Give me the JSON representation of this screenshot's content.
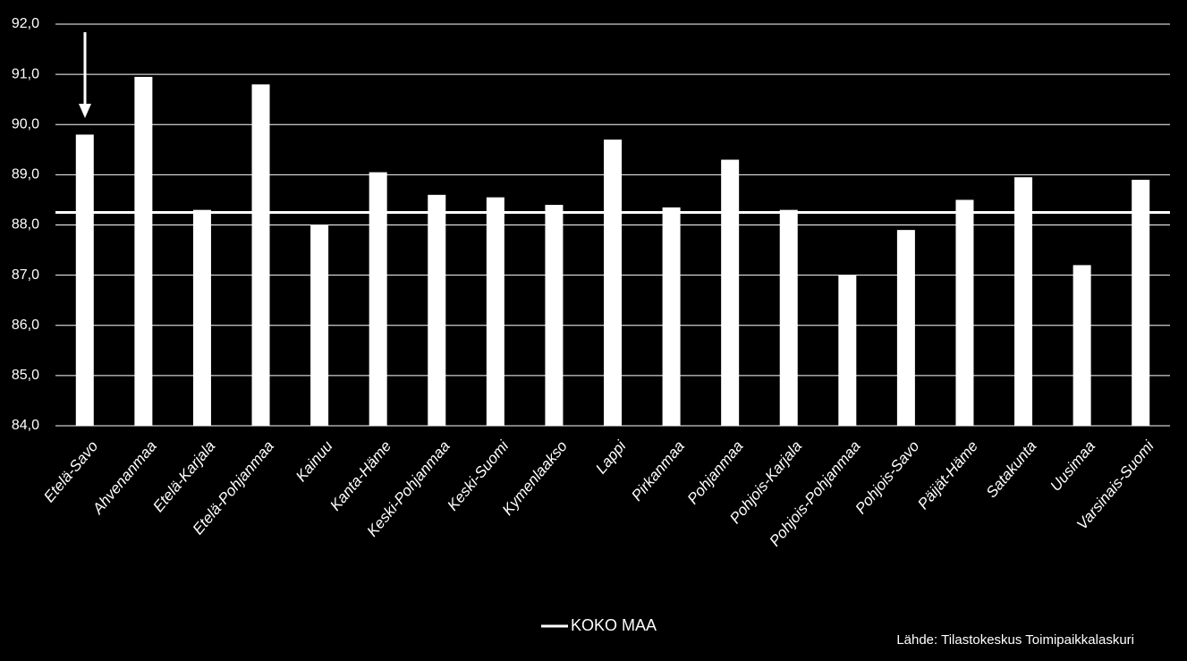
{
  "chart_data": {
    "type": "bar",
    "categories": [
      "Etelä-Savo",
      "Ahvenanmaa",
      "Etelä-Karjala",
      "Etelä-Pohjanmaa",
      "Kainuu",
      "Kanta-Häme",
      "Keski-Pohjanmaa",
      "Keski-Suomi",
      "Kymenlaakso",
      "Lappi",
      "Pirkanmaa",
      "Pohjanmaa",
      "Pohjois-Karjala",
      "Pohjois-Pohjanmaa",
      "Pohjois-Savo",
      "Päijät-Häme",
      "Satakunta",
      "Uusimaa",
      "Varsinais-Suomi"
    ],
    "values": [
      89.8,
      90.95,
      88.3,
      90.8,
      88.0,
      89.05,
      88.6,
      88.55,
      88.4,
      89.7,
      88.35,
      89.3,
      88.3,
      87.0,
      87.9,
      88.5,
      88.95,
      87.2,
      88.9
    ],
    "color": "#ffffff",
    "reference_line": {
      "name": "KOKO MAA",
      "value": 88.25,
      "color": "#ffffff"
    },
    "ylim": [
      84,
      92
    ],
    "yticks": [
      {
        "value": 84,
        "label": "84,0"
      },
      {
        "value": 85,
        "label": "85,0"
      },
      {
        "value": 86,
        "label": "86,0"
      },
      {
        "value": 87,
        "label": "87,0"
      },
      {
        "value": 88,
        "label": "88,0"
      },
      {
        "value": 89,
        "label": "89,0"
      },
      {
        "value": 90,
        "label": "90,0"
      },
      {
        "value": 91,
        "label": "91,0"
      },
      {
        "value": 92,
        "label": "92,0"
      }
    ],
    "grid": true,
    "source": "Lähde: Tilastokeskus Toimipaikkalaskuri"
  }
}
